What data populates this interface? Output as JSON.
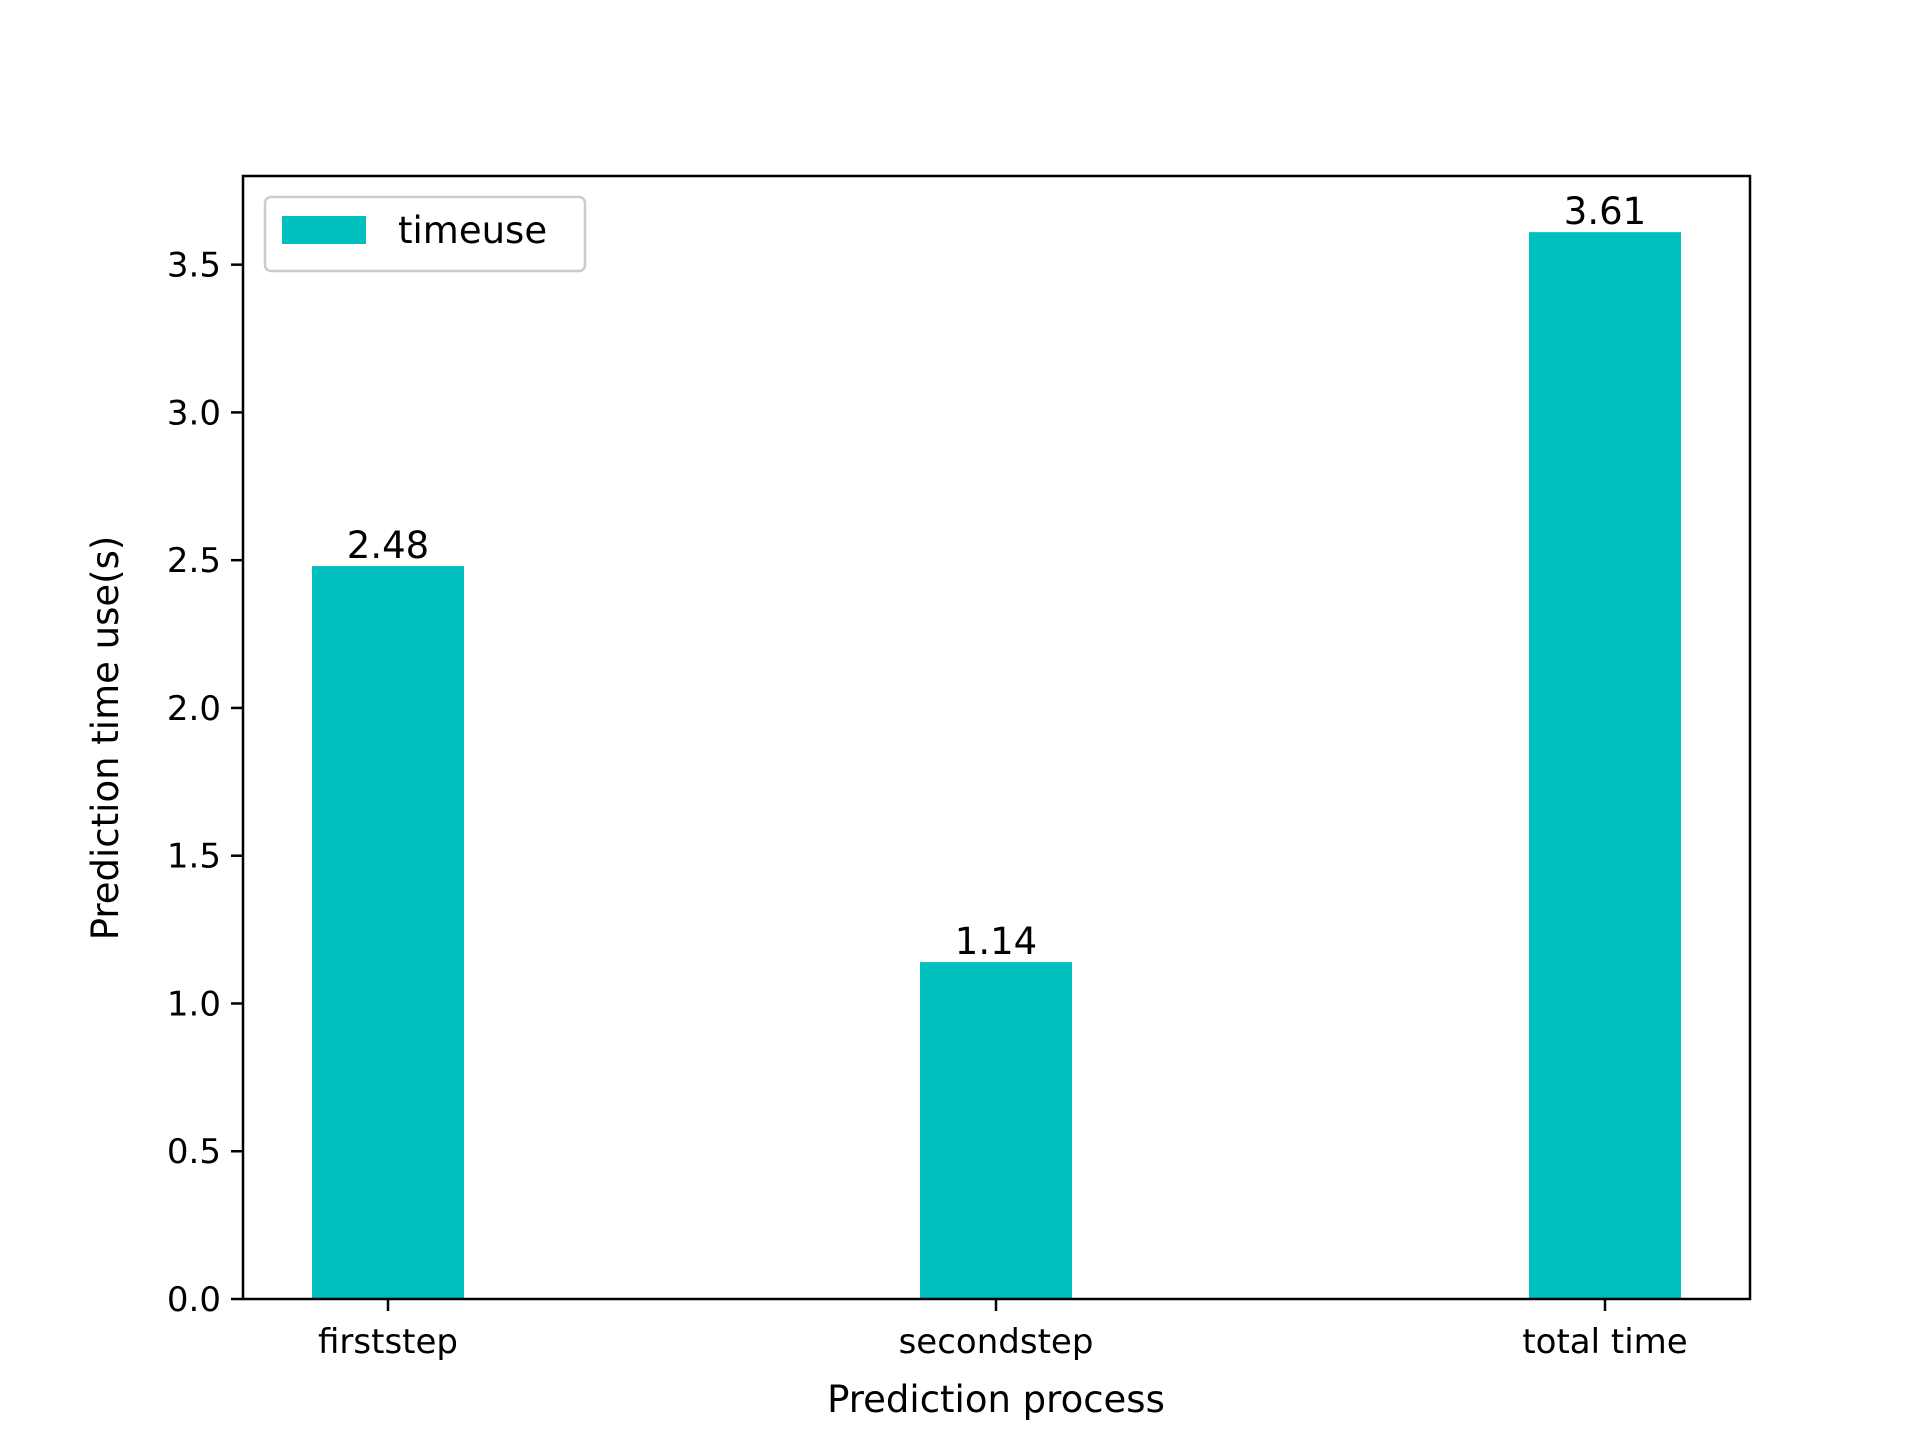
{
  "chart_data": {
    "type": "bar",
    "title": "",
    "xlabel": "Prediction process",
    "ylabel": "Prediction time use(s)",
    "categories": [
      "firststep",
      "secondstep",
      "total time"
    ],
    "series": [
      {
        "name": "timeuse",
        "values": [
          2.48,
          1.14,
          3.61
        ],
        "color": "#00bfbf"
      }
    ],
    "data_labels": [
      "2.48",
      "1.14",
      "3.61"
    ],
    "ylim": [
      0,
      3.8
    ],
    "yticks": [
      0.0,
      0.5,
      1.0,
      1.5,
      2.0,
      2.5,
      3.0,
      3.5
    ],
    "ytick_labels": [
      "0.0",
      "0.5",
      "1.0",
      "1.5",
      "2.0",
      "2.5",
      "3.0",
      "3.5"
    ],
    "grid": false,
    "legend_position": "top-left"
  }
}
